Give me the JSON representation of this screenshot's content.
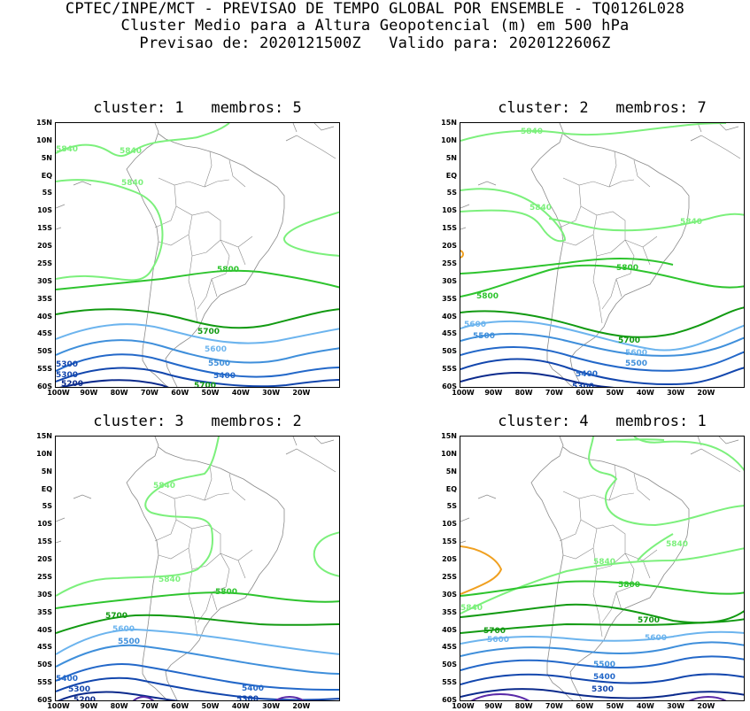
{
  "header": {
    "line1": "CPTEC/INPE/MCT - PREVISAO DE TEMPO GLOBAL POR ENSEMBLE - TQ0126L028",
    "line2": "Cluster Medio para a Altura Geopotencial (m) em 500 hPa",
    "line3": "Previsao de: 2020121500Z   Valido para: 2020122606Z"
  },
  "axes": {
    "lat_labels": [
      "15N",
      "10N",
      "5N",
      "EQ",
      "5S",
      "10S",
      "15S",
      "20S",
      "25S",
      "30S",
      "35S",
      "40S",
      "45S",
      "50S",
      "55S",
      "60S"
    ],
    "lon_labels": [
      "100W",
      "90W",
      "80W",
      "70W",
      "60W",
      "50W",
      "40W",
      "30W",
      "20W"
    ]
  },
  "colors": {
    "c5840": "#7cf07c",
    "c5800": "#2ec42e",
    "c5700": "#129a12",
    "c5600": "#6cb4ee",
    "c5500": "#3f8fdb",
    "c5400": "#2368c9",
    "c5300": "#1246ad",
    "c5200": "#0b2a8c",
    "c5100": "#5a2aa8",
    "c5880": "#f0a020",
    "coast": "#8a8a8a"
  },
  "panels": [
    {
      "title": "cluster: 1   membros: 5",
      "labels": {
        "a": "5840",
        "b": "5840",
        "c": "5840",
        "d": "5800",
        "e": "5700",
        "f": "5600",
        "g": "5500",
        "h": "5400",
        "i": "5300",
        "j": "5200",
        "k": "5700",
        "l": "5300"
      }
    },
    {
      "title": "cluster: 2   membros: 7",
      "labels": {
        "a": "5840",
        "b": "5840",
        "c": "5840",
        "d": "5800",
        "e": "5800",
        "f": "5700",
        "g": "5600",
        "h": "5500",
        "i": "5600",
        "j": "5500",
        "k": "5400",
        "l": "5300"
      }
    },
    {
      "title": "cluster: 3   membros: 2",
      "labels": {
        "a": "5840",
        "b": "5840",
        "c": "5800",
        "d": "5700",
        "e": "5600",
        "f": "5500",
        "g": "5400",
        "h": "5300",
        "i": "5400",
        "j": "5300",
        "k": "5200"
      }
    },
    {
      "title": "cluster: 4   membros: 1",
      "labels": {
        "a": "5840",
        "b": "5840",
        "c": "5800",
        "d": "5840",
        "e": "5700",
        "f": "5700",
        "g": "5600",
        "h": "5600",
        "i": "5500",
        "j": "5400",
        "k": "5300"
      }
    }
  ]
}
